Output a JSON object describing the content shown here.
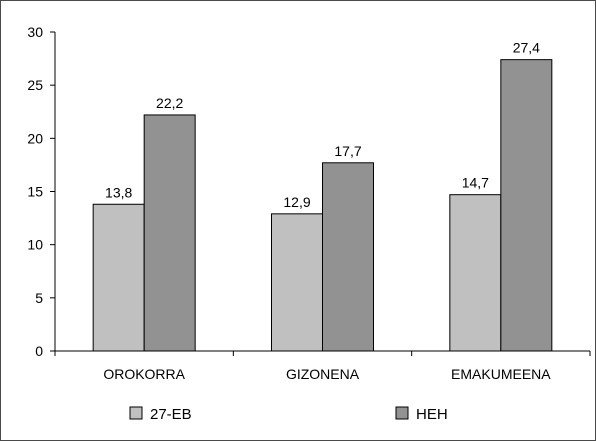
{
  "chart_data": {
    "type": "bar",
    "categories": [
      "OROKORRA",
      "GIZONENA",
      "EMAKUMEENA"
    ],
    "series": [
      {
        "name": "27-EB",
        "values": [
          13.8,
          12.9,
          14.7
        ],
        "labels": [
          "13,8",
          "12,9",
          "14,7"
        ],
        "color": "#c0c0c0"
      },
      {
        "name": "HEH",
        "values": [
          22.2,
          17.7,
          27.4
        ],
        "labels": [
          "22,2",
          "17,7",
          "27,4"
        ],
        "color": "#929292"
      }
    ],
    "ylim": [
      0,
      30
    ],
    "yticks": [
      0,
      5,
      10,
      15,
      20,
      25,
      30
    ],
    "grid": false,
    "legend_position": "bottom"
  }
}
